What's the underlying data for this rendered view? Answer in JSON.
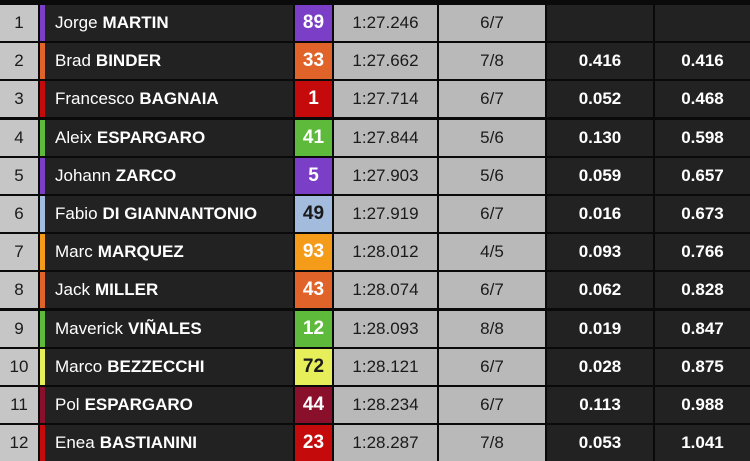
{
  "table": {
    "rows": [
      {
        "pos": "1",
        "first_name": "Jorge",
        "last_name": "MARTIN",
        "number": "89",
        "time": "1:27.246",
        "laps": "6/7"
      },
      {
        "pos": "2",
        "first_name": "Brad",
        "last_name": "BINDER",
        "number": "33",
        "time": "1:27.662",
        "laps": "7/8",
        "gap": "0.416",
        "gap_first": "0.416"
      },
      {
        "pos": "3",
        "first_name": "Francesco",
        "last_name": "BAGNAIA",
        "number": "1",
        "time": "1:27.714",
        "laps": "6/7",
        "gap": "0.052",
        "gap_first": "0.468"
      },
      {
        "pos": "4",
        "first_name": "Aleix",
        "last_name": "ESPARGARO",
        "number": "41",
        "time": "1:27.844",
        "laps": "5/6",
        "gap": "0.130",
        "gap_first": "0.598"
      },
      {
        "pos": "5",
        "first_name": "Johann",
        "last_name": "ZARCO",
        "number": "5",
        "time": "1:27.903",
        "laps": "5/6",
        "gap": "0.059",
        "gap_first": "0.657"
      },
      {
        "pos": "6",
        "first_name": "Fabio",
        "last_name": "DI GIANNANTONIO",
        "number": "49",
        "time": "1:27.919",
        "laps": "6/7",
        "gap": "0.016",
        "gap_first": "0.673"
      },
      {
        "pos": "7",
        "first_name": "Marc",
        "last_name": "MARQUEZ",
        "number": "93",
        "time": "1:28.012",
        "laps": "4/5",
        "gap": "0.093",
        "gap_first": "0.766"
      },
      {
        "pos": "8",
        "first_name": "Jack",
        "last_name": "MILLER",
        "number": "43",
        "time": "1:28.074",
        "laps": "6/7",
        "gap": "0.062",
        "gap_first": "0.828"
      },
      {
        "pos": "9",
        "first_name": "Maverick",
        "last_name": "VIÑALES",
        "number": "12",
        "time": "1:28.093",
        "laps": "8/8",
        "gap": "0.019",
        "gap_first": "0.847"
      },
      {
        "pos": "10",
        "first_name": "Marco",
        "last_name": "BEZZECCHI",
        "number": "72",
        "time": "1:28.121",
        "laps": "6/7",
        "gap": "0.028",
        "gap_first": "0.875"
      },
      {
        "pos": "11",
        "first_name": "Pol",
        "last_name": "ESPARGARO",
        "number": "44",
        "time": "1:28.234",
        "laps": "6/7",
        "gap": "0.113",
        "gap_first": "0.988"
      },
      {
        "pos": "12",
        "first_name": "Enea",
        "last_name": "BASTIANINI",
        "number": "23",
        "time": "1:28.287",
        "laps": "7/8",
        "gap": "0.053",
        "gap_first": "1.041"
      }
    ]
  }
}
